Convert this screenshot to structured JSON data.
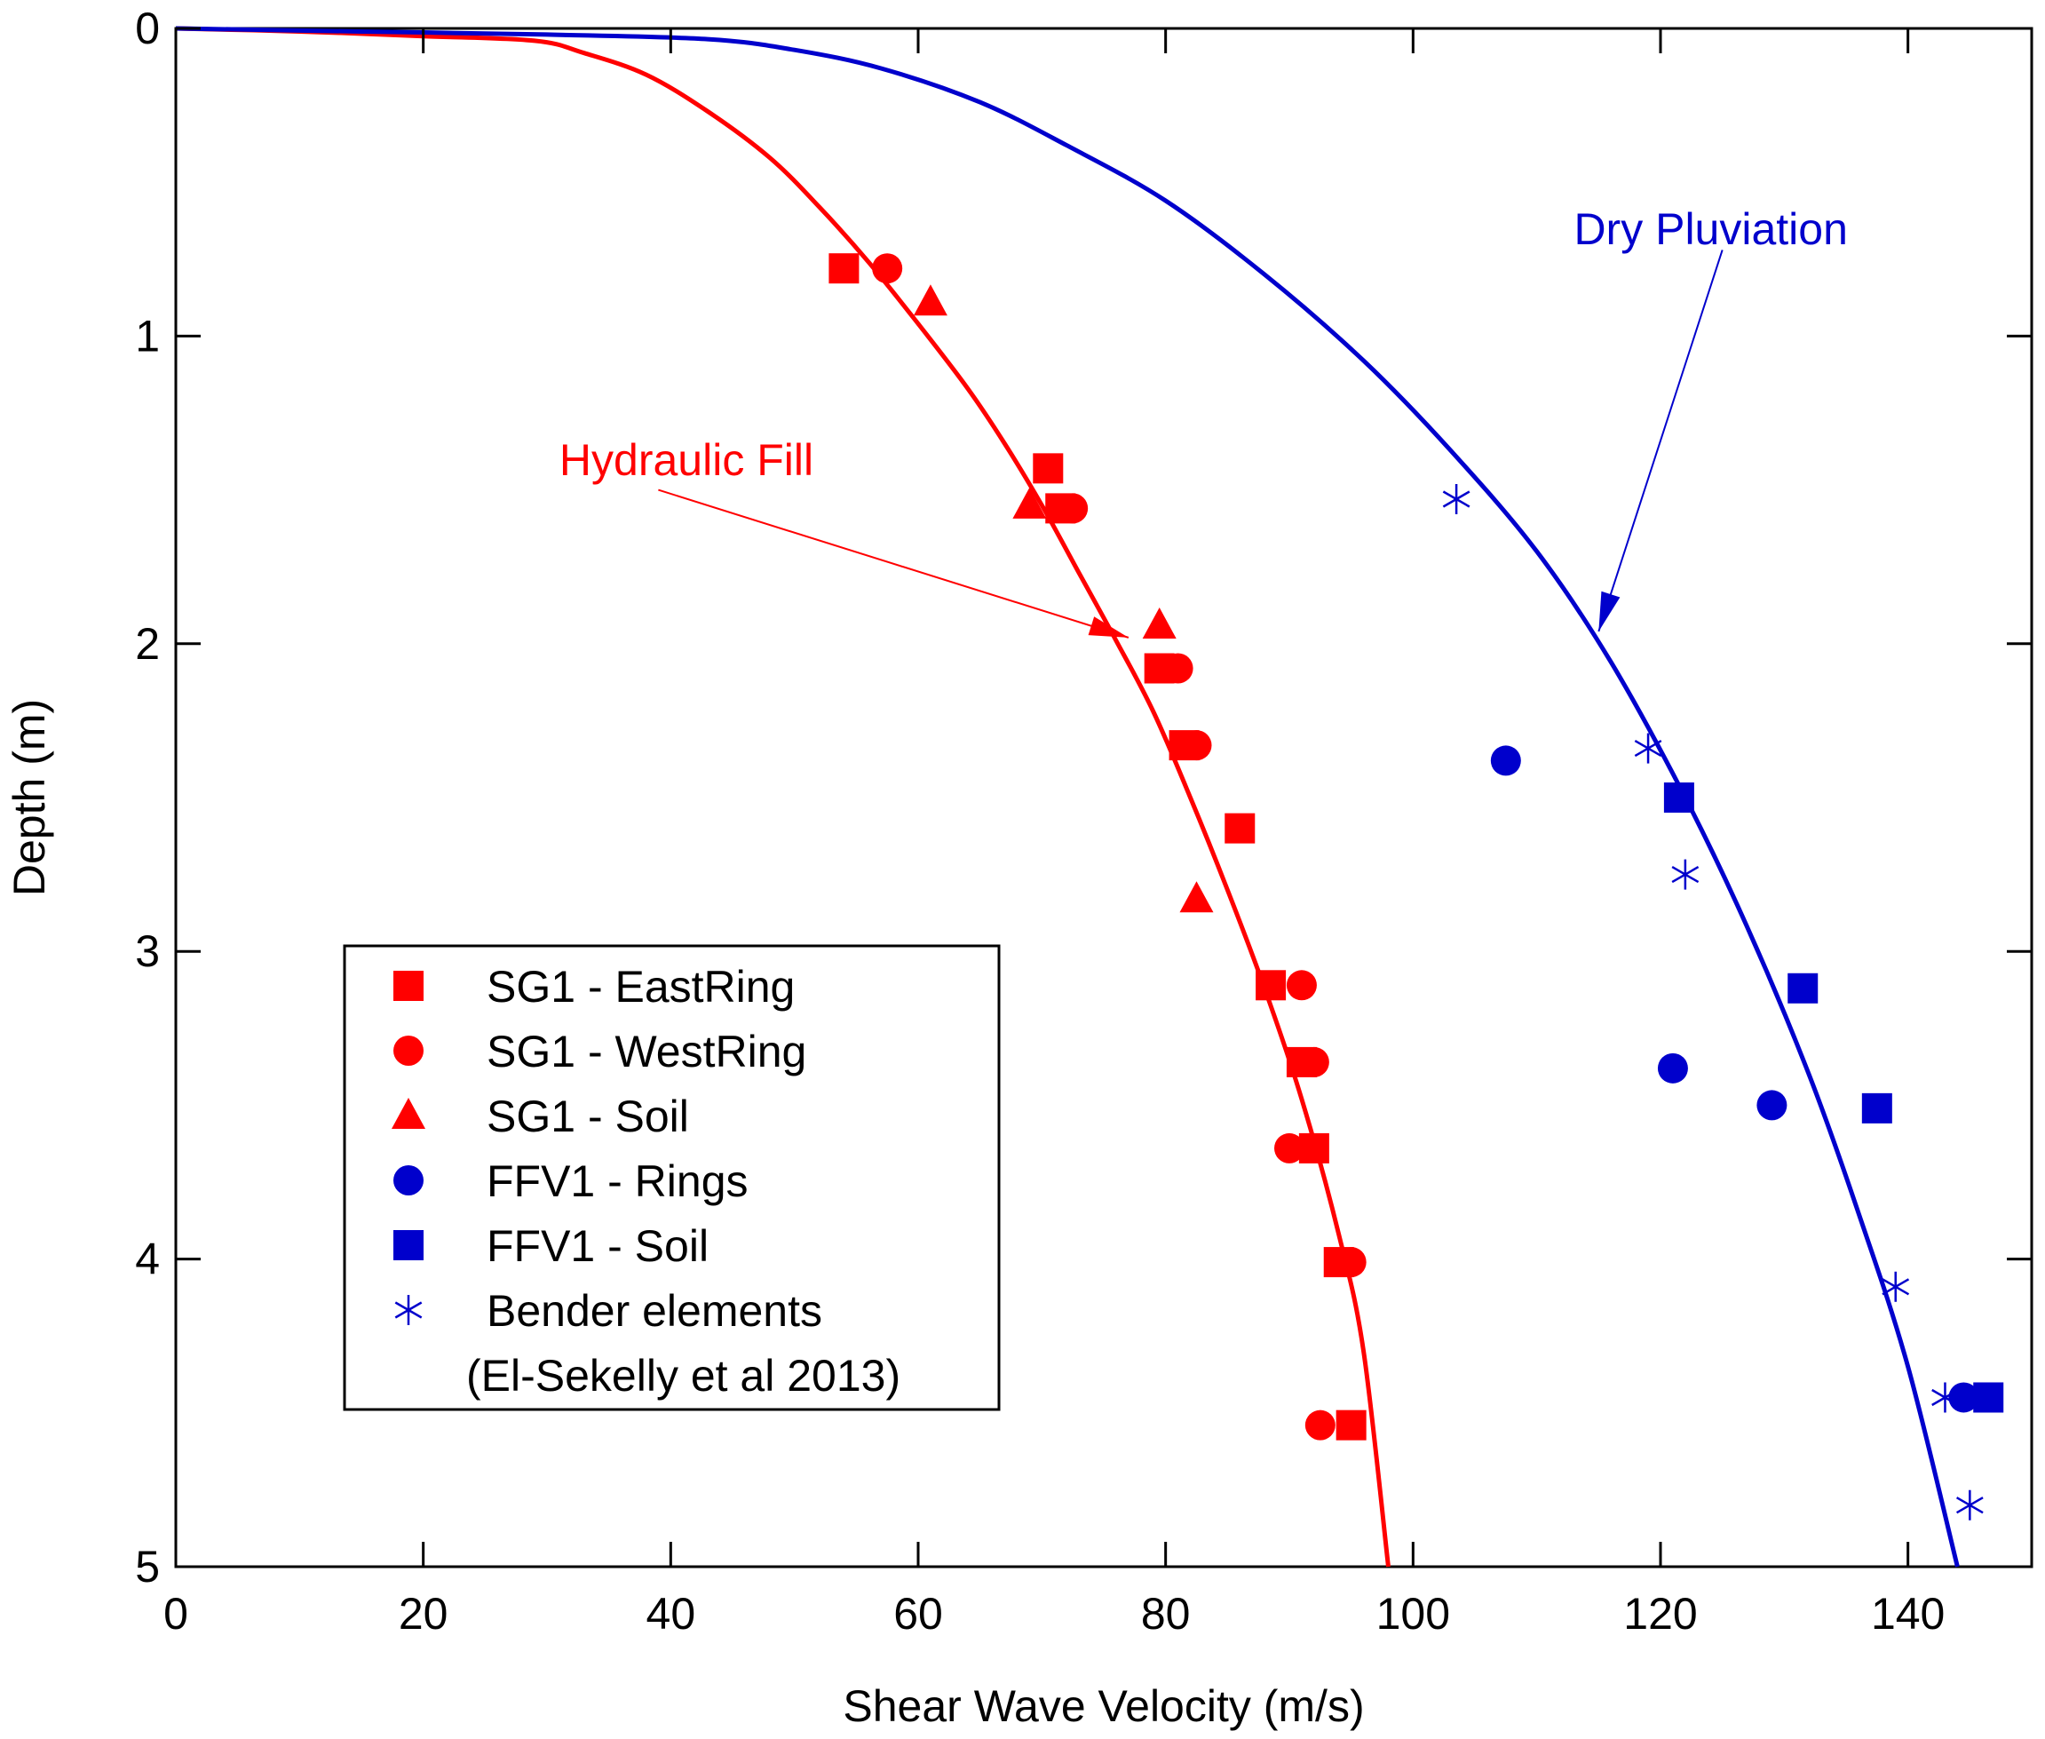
{
  "chart_data": {
    "type": "scatter",
    "title": "",
    "xlabel": "Shear Wave Velocity (m/s)",
    "ylabel": "Depth (m)",
    "xlim": [
      0,
      150
    ],
    "ylim": [
      0,
      5
    ],
    "y_inverted": true,
    "x_ticks": [
      0,
      20,
      40,
      60,
      80,
      100,
      120,
      140
    ],
    "x_tick_labels": [
      "0",
      "20",
      "40",
      "60",
      "80",
      "100",
      "120",
      "140"
    ],
    "y_ticks": [
      0,
      1,
      2,
      3,
      4,
      5
    ],
    "y_tick_labels": [
      "0",
      "1",
      "2",
      "3",
      "4",
      "5"
    ],
    "grid": false,
    "legend_position": "bottom-left",
    "legend_note": "(El-Sekelly et al 2013)",
    "colors": {
      "red": "#ff0000",
      "blue": "#0000cc",
      "axis": "#000000"
    },
    "curves": [
      {
        "name": "Hydraulic Fill",
        "color": "#ff0000",
        "points": [
          [
            0,
            0
          ],
          [
            10,
            0.01
          ],
          [
            20,
            0.025
          ],
          [
            29,
            0.04
          ],
          [
            33,
            0.08
          ],
          [
            38,
            0.15
          ],
          [
            43,
            0.27
          ],
          [
            48,
            0.42
          ],
          [
            52,
            0.58
          ],
          [
            56,
            0.76
          ],
          [
            60,
            0.96
          ],
          [
            64,
            1.17
          ],
          [
            67,
            1.35
          ],
          [
            70,
            1.55
          ],
          [
            73,
            1.77
          ],
          [
            76,
            1.99
          ],
          [
            79,
            2.22
          ],
          [
            82,
            2.5
          ],
          [
            85,
            2.8
          ],
          [
            88,
            3.12
          ],
          [
            91,
            3.48
          ],
          [
            94,
            3.92
          ],
          [
            96,
            4.3
          ],
          [
            98,
            5.0
          ]
        ]
      },
      {
        "name": "Dry Pluviation",
        "color": "#0000cc",
        "points": [
          [
            0,
            0
          ],
          [
            15,
            0.01
          ],
          [
            30,
            0.02
          ],
          [
            43,
            0.035
          ],
          [
            50,
            0.07
          ],
          [
            57,
            0.13
          ],
          [
            65,
            0.24
          ],
          [
            72,
            0.38
          ],
          [
            80,
            0.56
          ],
          [
            88,
            0.8
          ],
          [
            96,
            1.08
          ],
          [
            103,
            1.37
          ],
          [
            110,
            1.7
          ],
          [
            116,
            2.06
          ],
          [
            122,
            2.5
          ],
          [
            127,
            2.92
          ],
          [
            132,
            3.4
          ],
          [
            136,
            3.85
          ],
          [
            140,
            4.35
          ],
          [
            144,
            5.0
          ]
        ]
      }
    ],
    "annotations": [
      {
        "text": "Hydraulic Fill",
        "color": "#ff0000",
        "text_at": [
          31,
          1.4
        ],
        "arrow_from": [
          39,
          1.5
        ],
        "arrow_to": [
          77,
          1.98
        ]
      },
      {
        "text": "Dry Pluviation",
        "color": "#0000cc",
        "text_at": [
          113,
          0.65
        ],
        "arrow_from": [
          125,
          0.72
        ],
        "arrow_to": [
          115,
          1.96
        ]
      }
    ],
    "series": [
      {
        "name": "SG1 - EastRing",
        "marker": "square",
        "color": "#ff0000",
        "points": [
          [
            54,
            0.78
          ],
          [
            70.5,
            1.43
          ],
          [
            71.5,
            1.56
          ],
          [
            79.5,
            2.08
          ],
          [
            81.5,
            2.33
          ],
          [
            86,
            2.6
          ],
          [
            88.5,
            3.11
          ],
          [
            91,
            3.36
          ],
          [
            92,
            3.64
          ],
          [
            94,
            4.01
          ],
          [
            95,
            4.54
          ]
        ]
      },
      {
        "name": "SG1 - WestRing",
        "marker": "circle",
        "color": "#ff0000",
        "points": [
          [
            57.5,
            0.78
          ],
          [
            72.5,
            1.56
          ],
          [
            81,
            2.08
          ],
          [
            82.5,
            2.33
          ],
          [
            91,
            3.11
          ],
          [
            92,
            3.36
          ],
          [
            90,
            3.64
          ],
          [
            95,
            4.01
          ],
          [
            92.5,
            4.54
          ]
        ]
      },
      {
        "name": "SG1 - Soil",
        "marker": "triangle",
        "color": "#ff0000",
        "points": [
          [
            61,
            0.89
          ],
          [
            69,
            1.55
          ],
          [
            79.5,
            1.94
          ],
          [
            82.5,
            2.83
          ]
        ]
      },
      {
        "name": "FFV1 - Rings",
        "marker": "circle",
        "color": "#0000cc",
        "points": [
          [
            107.5,
            2.38
          ],
          [
            121,
            3.38
          ],
          [
            129,
            3.5
          ],
          [
            144.5,
            4.45
          ]
        ]
      },
      {
        "name": "FFV1 - Soil",
        "marker": "square",
        "color": "#0000cc",
        "points": [
          [
            121.5,
            2.5
          ],
          [
            131.5,
            3.12
          ],
          [
            137.5,
            3.51
          ],
          [
            146.5,
            4.45
          ]
        ]
      },
      {
        "name": "Bender elements",
        "marker": "asterisk",
        "color": "#0000cc",
        "points": [
          [
            103.5,
            1.53
          ],
          [
            119,
            2.34
          ],
          [
            122,
            2.75
          ],
          [
            139,
            4.09
          ],
          [
            143,
            4.45
          ],
          [
            145,
            4.8
          ]
        ]
      }
    ]
  }
}
